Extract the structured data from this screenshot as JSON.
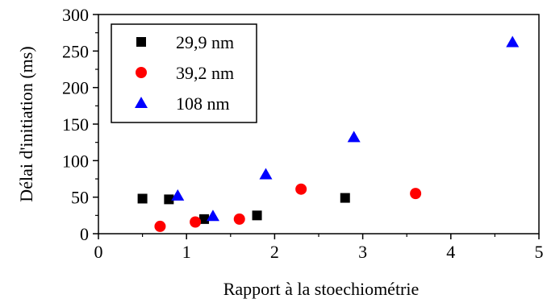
{
  "chart_data": {
    "type": "scatter",
    "xlabel": "Rapport à la stoechiométrie",
    "ylabel": "Délai d'initiation (ms)",
    "xlim": [
      0,
      5
    ],
    "ylim": [
      0,
      300
    ],
    "x_ticks": [
      0,
      1,
      2,
      3,
      4,
      5
    ],
    "y_ticks": [
      0,
      50,
      100,
      150,
      200,
      250,
      300
    ],
    "grid": false,
    "legend_position": "top-left",
    "series": [
      {
        "name": "29,9 nm",
        "marker": "square",
        "color": "#000000",
        "points": [
          {
            "x": 0.5,
            "y": 48
          },
          {
            "x": 0.8,
            "y": 47
          },
          {
            "x": 1.2,
            "y": 20
          },
          {
            "x": 1.8,
            "y": 25
          },
          {
            "x": 2.8,
            "y": 49
          }
        ]
      },
      {
        "name": "39,2 nm",
        "marker": "circle",
        "color": "#ff0000",
        "points": [
          {
            "x": 0.7,
            "y": 10
          },
          {
            "x": 1.1,
            "y": 16
          },
          {
            "x": 1.6,
            "y": 20
          },
          {
            "x": 2.3,
            "y": 61
          },
          {
            "x": 3.6,
            "y": 55
          }
        ]
      },
      {
        "name": "108 nm",
        "marker": "triangle",
        "color": "#0000ff",
        "points": [
          {
            "x": 0.9,
            "y": 52
          },
          {
            "x": 1.3,
            "y": 24
          },
          {
            "x": 1.9,
            "y": 81
          },
          {
            "x": 2.9,
            "y": 132
          },
          {
            "x": 4.7,
            "y": 262
          }
        ]
      }
    ]
  }
}
